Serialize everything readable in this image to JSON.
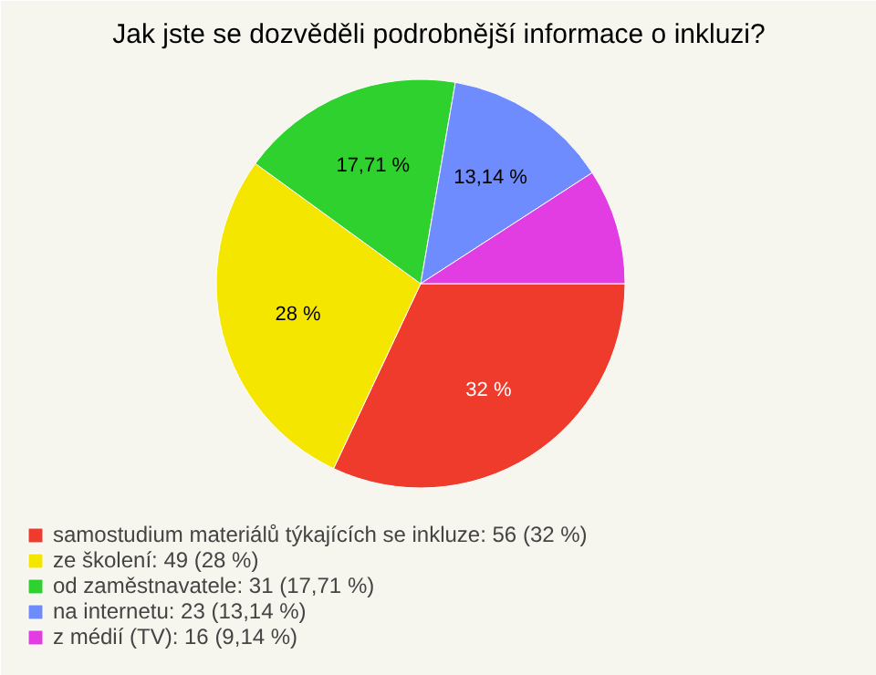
{
  "chart_data": {
    "type": "pie",
    "title": "Jak jste se dozvěděli podrobnější informace o inkluzi?",
    "categories": [
      "samostudium materiálů týkajících se inkluze: 56 (32 %)",
      "ze školení: 49 (28 %)",
      "od zaměstnavatele: 31 (17,71 %)",
      "na internetu: 23 (13,14 %)",
      "z médií (TV): 16 (9,14 %)"
    ],
    "values": [
      32,
      28,
      17.71,
      13.14,
      9.14
    ],
    "colors": [
      "#ee3b2b",
      "#f5e600",
      "#2ed12e",
      "#6f8cff",
      "#e23de2"
    ],
    "value_labels": [
      "32 %",
      "28 %",
      "17,71 %",
      "13,14 %",
      null
    ],
    "legend": "bottom left"
  }
}
